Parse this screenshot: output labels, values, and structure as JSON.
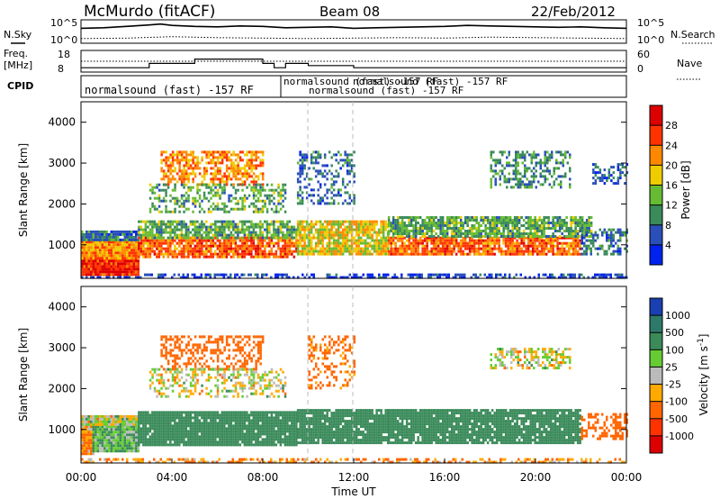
{
  "header": {
    "station": "McMurdo (fitACF)",
    "beam": "Beam 08",
    "date": "22/Feb/2012"
  },
  "noise_panel": {
    "left_label": "N.Sky",
    "right_label": "N.Search",
    "left_ticks": [
      "10^5",
      "10^0"
    ],
    "right_ticks": [
      "10^5",
      "10^0"
    ]
  },
  "freq_panel": {
    "left_label_1": "Freq.",
    "left_label_2": "[MHz]",
    "left_ticks": [
      "18",
      "8"
    ],
    "right_label": "Nave",
    "right_ticks": [
      "60",
      "0"
    ]
  },
  "cpid_panel": {
    "label": "CPID",
    "entries": [
      "normalsound (fast) -157 RF",
      "normalsound (fast) -157 RF",
      "normalsound (fast) -157 RF",
      "normalsound (fast) -157 RF"
    ]
  },
  "x_axis": {
    "label": "Time UT",
    "ticks": [
      "00:00",
      "04:00",
      "08:00",
      "12:00",
      "16:00",
      "20:00",
      "00:00"
    ]
  },
  "power_panel": {
    "ylabel": "Slant Range [km]",
    "yticks": [
      "1000",
      "2000",
      "3000",
      "4000"
    ],
    "colorbar_label": "Power [dB]",
    "colorbar_ticks": [
      "4",
      "8",
      "12",
      "16",
      "20",
      "24",
      "28"
    ],
    "colors": [
      "#0022ee",
      "#2a4fb8",
      "#3a8a5a",
      "#66bb33",
      "#eecc00",
      "#ff8800",
      "#ff3300",
      "#dd0000"
    ]
  },
  "velocity_panel": {
    "ylabel": "Slant Range [km]",
    "yticks": [
      "1000",
      "2000",
      "3000",
      "4000"
    ],
    "colorbar_label": "Velocity [m s^-1]",
    "colorbar_ticks": [
      "1000",
      "500",
      "100",
      "25",
      "-25",
      "-100",
      "-500",
      "-1000"
    ],
    "colors": [
      "#1a3fb0",
      "#2e7a6a",
      "#3a8a5a",
      "#66cc33",
      "#bbbbbb",
      "#ffaa00",
      "#ff6600",
      "#ff3300",
      "#dd0000"
    ]
  },
  "chart_data": [
    {
      "type": "line",
      "title": "N.Sky / N.Search",
      "x_range_hours": [
        0,
        24
      ],
      "ylim_log10": [
        0,
        5
      ],
      "series": [
        {
          "name": "N.Sky",
          "x": [
            0,
            1,
            2,
            3,
            3.5,
            4,
            5,
            6,
            7,
            8,
            9,
            10,
            11,
            12,
            13,
            14,
            15,
            16,
            17,
            18,
            19,
            20,
            21,
            22,
            23,
            24
          ],
          "y": [
            3.2,
            3.3,
            3.6,
            3.9,
            4.1,
            3.8,
            3.6,
            3.5,
            3.7,
            3.6,
            3.3,
            3.4,
            3.5,
            3.2,
            3.3,
            3.4,
            3.5,
            3.6,
            3.8,
            3.7,
            3.6,
            3.5,
            3.4,
            3.5,
            3.3,
            3.2
          ]
        },
        {
          "name": "N.Search",
          "x": [
            0,
            2,
            4,
            6,
            8,
            10,
            12,
            14,
            16,
            18,
            20,
            22,
            24
          ],
          "y": [
            1.0,
            1.1,
            1.4,
            1.2,
            1.1,
            1.0,
            1.1,
            1.2,
            1.1,
            1.3,
            1.2,
            1.1,
            1.0
          ]
        }
      ]
    },
    {
      "type": "line",
      "title": "Freq. / Nave",
      "x_range_hours": [
        0,
        24
      ],
      "series": [
        {
          "name": "Freq.",
          "x": [
            0,
            2.5,
            3,
            5,
            8,
            8.5,
            9,
            10,
            12,
            16,
            20,
            24
          ],
          "y": [
            10,
            10,
            12,
            14,
            12,
            10,
            12,
            11,
            10,
            10,
            10,
            10
          ]
        },
        {
          "name": "Nave",
          "x": [
            0,
            24
          ],
          "y": [
            30,
            30
          ]
        }
      ]
    },
    {
      "type": "heatmap",
      "title": "Power [dB]",
      "xlabel": "Time UT",
      "ylabel": "Slant Range [km]",
      "x_range_hours": [
        0,
        24
      ],
      "ylim": [
        180,
        4500
      ],
      "colorbar_range": [
        0,
        32
      ],
      "bands": [
        {
          "from_h": 0.0,
          "to_h": 24.0,
          "r_lo": 180,
          "r_hi": 300,
          "value": 4,
          "density": 0.55
        },
        {
          "from_h": 0.0,
          "to_h": 2.5,
          "r_lo": 300,
          "r_hi": 700,
          "value": 28,
          "density": 1.0
        },
        {
          "from_h": 0.0,
          "to_h": 2.5,
          "r_lo": 700,
          "r_hi": 1100,
          "value": 22,
          "density": 1.0
        },
        {
          "from_h": 0.0,
          "to_h": 2.5,
          "r_lo": 1100,
          "r_hi": 1350,
          "value": 8,
          "density": 0.9
        },
        {
          "from_h": 2.5,
          "to_h": 9.5,
          "r_lo": 700,
          "r_hi": 1200,
          "value": 24,
          "density": 0.85
        },
        {
          "from_h": 2.5,
          "to_h": 9.5,
          "r_lo": 1200,
          "r_hi": 1600,
          "value": 12,
          "density": 0.75
        },
        {
          "from_h": 3.5,
          "to_h": 8.0,
          "r_lo": 2500,
          "r_hi": 3300,
          "value": 22,
          "density": 0.6
        },
        {
          "from_h": 3.0,
          "to_h": 9.0,
          "r_lo": 1800,
          "r_hi": 2500,
          "value": 12,
          "density": 0.45
        },
        {
          "from_h": 9.5,
          "to_h": 13.5,
          "r_lo": 800,
          "r_hi": 1600,
          "value": 18,
          "density": 0.85
        },
        {
          "from_h": 9.5,
          "to_h": 12.0,
          "r_lo": 2000,
          "r_hi": 3300,
          "value": 8,
          "density": 0.35
        },
        {
          "from_h": 13.5,
          "to_h": 22.0,
          "r_lo": 750,
          "r_hi": 1200,
          "value": 24,
          "density": 0.85
        },
        {
          "from_h": 13.5,
          "to_h": 22.5,
          "r_lo": 1200,
          "r_hi": 1700,
          "value": 12,
          "density": 0.8
        },
        {
          "from_h": 18.0,
          "to_h": 21.5,
          "r_lo": 2400,
          "r_hi": 3300,
          "value": 10,
          "density": 0.45
        },
        {
          "from_h": 22.0,
          "to_h": 24.0,
          "r_lo": 800,
          "r_hi": 1400,
          "value": 8,
          "density": 0.5
        },
        {
          "from_h": 22.5,
          "to_h": 24.0,
          "r_lo": 2500,
          "r_hi": 3000,
          "value": 6,
          "density": 0.4
        }
      ]
    },
    {
      "type": "heatmap",
      "title": "Velocity [m s^-1]",
      "xlabel": "Time UT",
      "ylabel": "Slant Range [km]",
      "x_range_hours": [
        0,
        24
      ],
      "ylim": [
        180,
        4500
      ],
      "colorbar_range": [
        -1000,
        1000
      ],
      "bands": [
        {
          "from_h": 0.0,
          "to_h": 24.0,
          "r_lo": 180,
          "r_hi": 300,
          "value": -100,
          "density": 0.45
        },
        {
          "from_h": 0.0,
          "to_h": 0.5,
          "r_lo": 400,
          "r_hi": 1100,
          "value": -100,
          "density": 1.0
        },
        {
          "from_h": 0.5,
          "to_h": 2.5,
          "r_lo": 450,
          "r_hi": 1100,
          "value": 100,
          "density": 1.0
        },
        {
          "from_h": 0.0,
          "to_h": 2.5,
          "r_lo": 1100,
          "r_hi": 1350,
          "value": 0,
          "density": 1.0
        },
        {
          "from_h": 2.5,
          "to_h": 9.5,
          "r_lo": 600,
          "r_hi": 1450,
          "value": 300,
          "density": 0.95
        },
        {
          "from_h": 3.5,
          "to_h": 8.0,
          "r_lo": 2500,
          "r_hi": 3300,
          "value": -300,
          "density": 0.45
        },
        {
          "from_h": 3.0,
          "to_h": 9.0,
          "r_lo": 1800,
          "r_hi": 2500,
          "value": 0,
          "density": 0.4
        },
        {
          "from_h": 9.5,
          "to_h": 13.5,
          "r_lo": 700,
          "r_hi": 1500,
          "value": 300,
          "density": 0.9
        },
        {
          "from_h": 10.0,
          "to_h": 12.0,
          "r_lo": 2000,
          "r_hi": 3300,
          "value": -150,
          "density": 0.3
        },
        {
          "from_h": 13.5,
          "to_h": 22.0,
          "r_lo": 700,
          "r_hi": 1500,
          "value": 300,
          "density": 0.9
        },
        {
          "from_h": 18.0,
          "to_h": 21.5,
          "r_lo": 2500,
          "r_hi": 3000,
          "value": 0,
          "density": 0.55
        },
        {
          "from_h": 22.0,
          "to_h": 24.0,
          "r_lo": 800,
          "r_hi": 1400,
          "value": -300,
          "density": 0.45
        }
      ]
    }
  ]
}
